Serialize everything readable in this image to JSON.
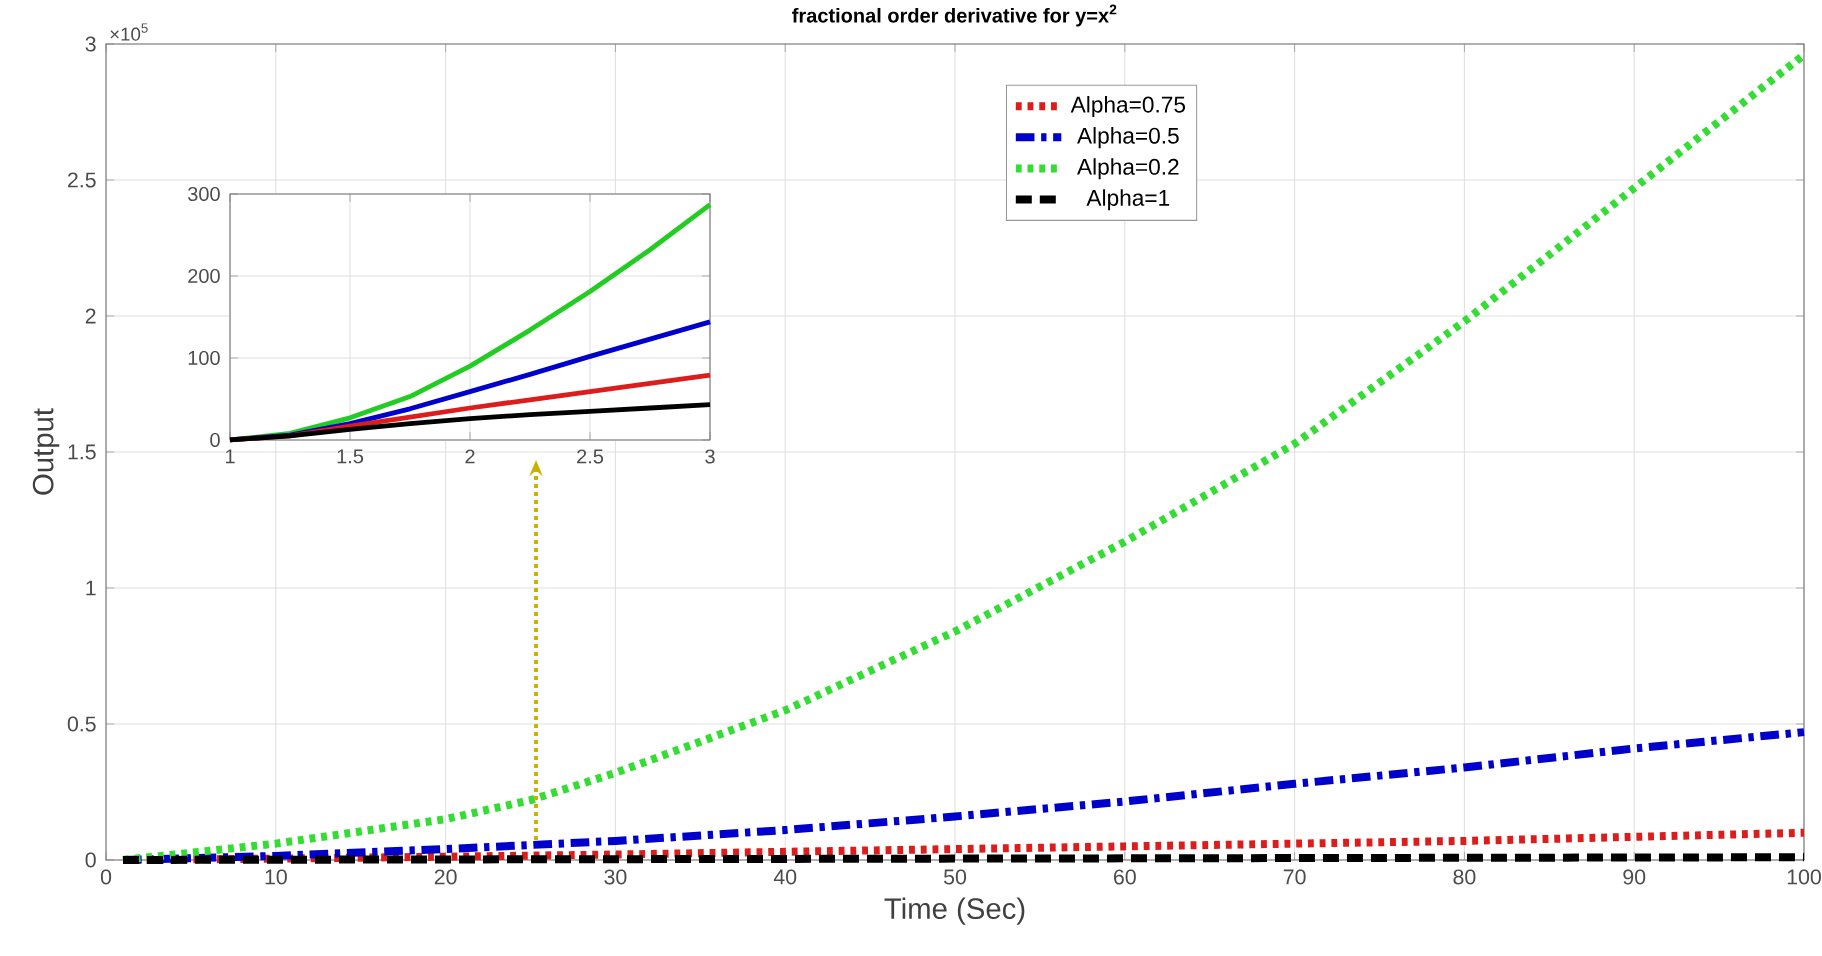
{
  "chart_data": [
    {
      "type": "line",
      "title": "fractional order derivative for y=x$^{2}$",
      "xlabel": "Time (Sec)",
      "ylabel": "Output",
      "annotations": [
        "×10$^{5}$"
      ],
      "xlim": [
        0,
        100
      ],
      "xticks": [
        0,
        10,
        20,
        30,
        40,
        50,
        60,
        70,
        80,
        90,
        100
      ],
      "ylim": [
        0,
        3
      ],
      "yticks": [
        0,
        0.5,
        1,
        1.5,
        2,
        2.5,
        3
      ],
      "grid": true,
      "legend": "top",
      "series": [
        {
          "name": "Alpha=0.75",
          "color": "#dd1c1c",
          "line_style": "dotted",
          "x": [
            1,
            10,
            20,
            30,
            40,
            50,
            60,
            70,
            80,
            90,
            100
          ],
          "values": [
            0,
            0.005,
            0.012,
            0.02,
            0.03,
            0.04,
            0.05,
            0.06,
            0.07,
            0.085,
            0.1
          ]
        },
        {
          "name": "Alpha=0.5",
          "color": "#0000cc",
          "line_style": "dashed",
          "x": [
            1,
            10,
            20,
            30,
            40,
            50,
            60,
            70,
            80,
            90,
            100
          ],
          "values": [
            0,
            0.015,
            0.04,
            0.07,
            0.11,
            0.16,
            0.215,
            0.28,
            0.34,
            0.41,
            0.47
          ]
        },
        {
          "name": "Alpha=0.2",
          "color": "#33dd33",
          "line_style": "dotted",
          "x": [
            1,
            10,
            20,
            25,
            30,
            40,
            50,
            60,
            70,
            80,
            90,
            100
          ],
          "values": [
            0,
            0.06,
            0.15,
            0.22,
            0.32,
            0.55,
            0.84,
            1.17,
            1.53,
            1.98,
            2.47,
            2.96
          ]
        },
        {
          "name": "Alpha=1",
          "color": "#000000",
          "line_style": "dashed",
          "x": [
            1,
            100
          ],
          "values": [
            0,
            0.01
          ]
        }
      ]
    },
    {
      "type": "line",
      "xlim": [
        1,
        3
      ],
      "xticks": [
        1,
        1.5,
        2,
        2.5,
        3
      ],
      "ylim": [
        0,
        300
      ],
      "yticks": [
        0,
        100,
        200,
        300
      ],
      "grid": true,
      "series": [
        {
          "color": "#22cc22",
          "x": [
            1,
            1.25,
            1.5,
            1.75,
            2,
            2.25,
            2.5,
            2.75,
            3
          ],
          "values": [
            0,
            8,
            27,
            53,
            90,
            134,
            181,
            232,
            287
          ]
        },
        {
          "color": "#0000cc",
          "x": [
            1,
            1.25,
            1.5,
            1.75,
            2,
            2.25,
            2.5,
            2.75,
            3
          ],
          "values": [
            0,
            6,
            20,
            38,
            59,
            80,
            102,
            123,
            144
          ]
        },
        {
          "color": "#dd1c1c",
          "x": [
            1,
            1.25,
            1.5,
            1.75,
            2,
            2.25,
            2.5,
            2.75,
            3
          ],
          "values": [
            0,
            5,
            17,
            28,
            39,
            49,
            59,
            69,
            79
          ]
        },
        {
          "color": "#000000",
          "x": [
            1,
            1.25,
            1.5,
            1.75,
            2,
            2.25,
            2.5,
            2.75,
            3
          ],
          "values": [
            0,
            5,
            13,
            20,
            26,
            31,
            35,
            39,
            43
          ]
        }
      ]
    }
  ]
}
